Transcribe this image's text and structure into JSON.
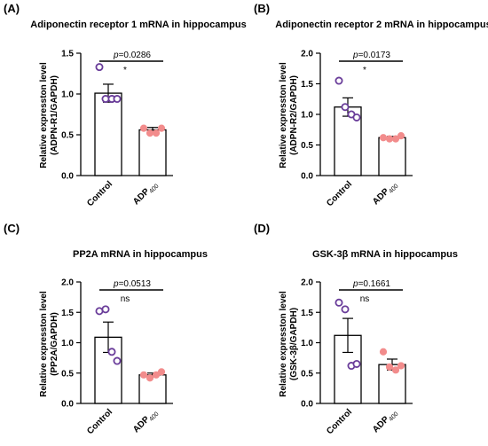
{
  "chart_data": [
    {
      "type": "bar",
      "panel": "(A)",
      "title": "Adiponectin receptor 1 mRNA in hippocampus",
      "ylabel": "Relative expresston level",
      "ylabel2": "(ADPN-R1/GAPDH)",
      "ylim": [
        0,
        1.5
      ],
      "yticks": [
        "0.0",
        "0.5",
        "1.0",
        "1.5"
      ],
      "categories": [
        {
          "label": "Control",
          "sub": ""
        },
        {
          "label": "ADP",
          "sub": "400"
        }
      ],
      "values": [
        1.01,
        0.56
      ],
      "errors": [
        0.11,
        0.03
      ],
      "points": [
        [
          1.33,
          0.94,
          0.94,
          0.94
        ],
        [
          0.58,
          0.52,
          0.52,
          0.58
        ]
      ],
      "pvalue": "=0.0286",
      "p_letter": "p",
      "significance": "*",
      "point_colors": [
        "#6a3d9a",
        "#f28c8c"
      ]
    },
    {
      "type": "bar",
      "panel": "(B)",
      "title": "Adiponectin receptor 2 mRNA in hippocampus",
      "ylabel": "Relative expresston level",
      "ylabel2": "(ADPN-R2/GAPDH)",
      "ylim": [
        0,
        2.0
      ],
      "yticks": [
        "0.0",
        "0.5",
        "1.0",
        "1.5",
        "2.0"
      ],
      "categories": [
        {
          "label": "Control",
          "sub": ""
        },
        {
          "label": "ADP",
          "sub": "400"
        }
      ],
      "values": [
        1.12,
        0.62
      ],
      "errors": [
        0.15,
        0.02
      ],
      "points": [
        [
          1.55,
          1.12,
          1.0,
          0.95
        ],
        [
          0.62,
          0.6,
          0.6,
          0.65
        ]
      ],
      "pvalue": "=0.0173",
      "p_letter": "p",
      "significance": "*",
      "point_colors": [
        "#6a3d9a",
        "#f28c8c"
      ]
    },
    {
      "type": "bar",
      "panel": "(C)",
      "title": "PP2A mRNA in hippocampus",
      "ylabel": "Relative expresston level",
      "ylabel2": "(PP2A/GAPDH)",
      "ylim": [
        0,
        2.0
      ],
      "yticks": [
        "0.0",
        "0.5",
        "1.0",
        "1.5",
        "2.0"
      ],
      "categories": [
        {
          "label": "Control",
          "sub": ""
        },
        {
          "label": "ADP",
          "sub": "400"
        }
      ],
      "values": [
        1.09,
        0.47
      ],
      "errors": [
        0.25,
        0.03
      ],
      "points": [
        [
          1.52,
          1.55,
          0.85,
          0.7
        ],
        [
          0.47,
          0.42,
          0.47,
          0.52
        ]
      ],
      "pvalue": "=0.0513",
      "p_letter": "p",
      "significance": "ns",
      "point_colors": [
        "#6a3d9a",
        "#f28c8c"
      ]
    },
    {
      "type": "bar",
      "panel": "(D)",
      "title": "GSK-3β mRNA in hippocampus",
      "ylabel": "Relative expresston level",
      "ylabel2": "(GSK-3β/GAPDH)",
      "ylim": [
        0,
        2.0
      ],
      "yticks": [
        "0.0",
        "0.5",
        "1.0",
        "1.5",
        "2.0"
      ],
      "categories": [
        {
          "label": "Control",
          "sub": ""
        },
        {
          "label": "ADP",
          "sub": "400"
        }
      ],
      "values": [
        1.12,
        0.64
      ],
      "errors": [
        0.28,
        0.09
      ],
      "points": [
        [
          1.66,
          1.55,
          0.62,
          0.65
        ],
        [
          0.85,
          0.6,
          0.55,
          0.62
        ]
      ],
      "pvalue": "=0.1661",
      "p_letter": "p",
      "significance": "ns",
      "point_colors": [
        "#6a3d9a",
        "#f28c8c"
      ]
    }
  ]
}
